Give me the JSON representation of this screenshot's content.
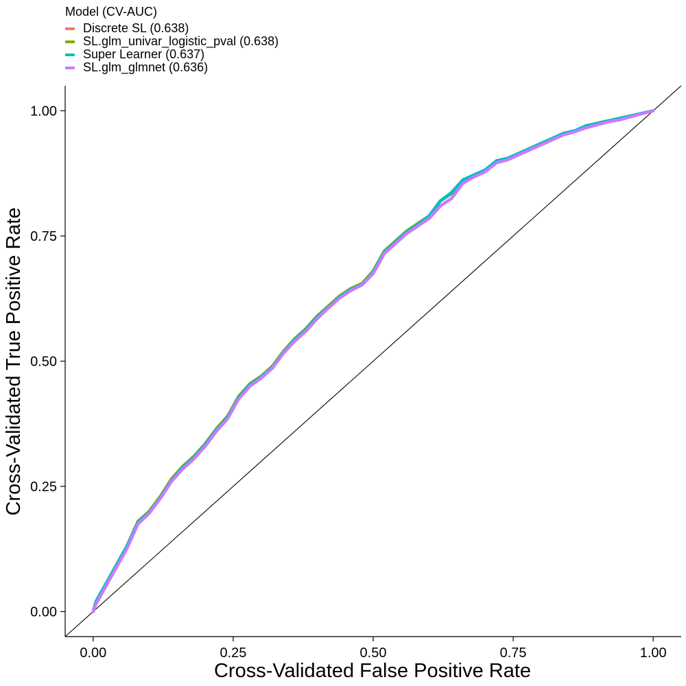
{
  "chart_data": {
    "type": "line",
    "xlabel": "Cross-Validated False Positive Rate",
    "ylabel": "Cross-Validated True Positive Rate",
    "xlim": [
      -0.05,
      1.05
    ],
    "ylim": [
      -0.05,
      1.05
    ],
    "x_ticks": [
      "0.00",
      "0.25",
      "0.50",
      "0.75",
      "1.00"
    ],
    "y_ticks": [
      "0.00",
      "0.25",
      "0.50",
      "0.75",
      "1.00"
    ],
    "legend": {
      "title": "Model (CV-AUC)",
      "placement": "top-left"
    },
    "reference_line": {
      "from": [
        -0.05,
        -0.05
      ],
      "to": [
        1.05,
        1.05
      ]
    },
    "series": [
      {
        "name": "Discrete SL (0.638)",
        "color": "#F8766D",
        "points": [
          [
            0,
            0
          ],
          [
            0.005,
            0.02
          ],
          [
            0.02,
            0.05
          ],
          [
            0.04,
            0.09
          ],
          [
            0.06,
            0.13
          ],
          [
            0.08,
            0.18
          ],
          [
            0.1,
            0.2
          ],
          [
            0.12,
            0.23
          ],
          [
            0.14,
            0.265
          ],
          [
            0.16,
            0.29
          ],
          [
            0.18,
            0.31
          ],
          [
            0.2,
            0.335
          ],
          [
            0.22,
            0.365
          ],
          [
            0.24,
            0.39
          ],
          [
            0.26,
            0.43
          ],
          [
            0.28,
            0.455
          ],
          [
            0.3,
            0.47
          ],
          [
            0.32,
            0.49
          ],
          [
            0.34,
            0.52
          ],
          [
            0.36,
            0.545
          ],
          [
            0.38,
            0.565
          ],
          [
            0.4,
            0.59
          ],
          [
            0.42,
            0.61
          ],
          [
            0.44,
            0.63
          ],
          [
            0.46,
            0.645
          ],
          [
            0.48,
            0.655
          ],
          [
            0.5,
            0.68
          ],
          [
            0.52,
            0.72
          ],
          [
            0.54,
            0.74
          ],
          [
            0.56,
            0.76
          ],
          [
            0.58,
            0.775
          ],
          [
            0.6,
            0.79
          ],
          [
            0.62,
            0.82
          ],
          [
            0.64,
            0.835
          ],
          [
            0.66,
            0.86
          ],
          [
            0.68,
            0.87
          ],
          [
            0.7,
            0.88
          ],
          [
            0.72,
            0.9
          ],
          [
            0.74,
            0.905
          ],
          [
            0.76,
            0.915
          ],
          [
            0.78,
            0.925
          ],
          [
            0.8,
            0.935
          ],
          [
            0.82,
            0.945
          ],
          [
            0.84,
            0.955
          ],
          [
            0.86,
            0.96
          ],
          [
            0.88,
            0.97
          ],
          [
            0.9,
            0.975
          ],
          [
            0.92,
            0.98
          ],
          [
            0.94,
            0.985
          ],
          [
            0.96,
            0.99
          ],
          [
            0.98,
            0.995
          ],
          [
            1,
            1
          ]
        ]
      },
      {
        "name": "SL.glm_univar_logistic_pval (0.638)",
        "color": "#7CAE00",
        "points": [
          [
            0,
            0
          ],
          [
            0.005,
            0.02
          ],
          [
            0.02,
            0.05
          ],
          [
            0.04,
            0.09
          ],
          [
            0.06,
            0.13
          ],
          [
            0.08,
            0.18
          ],
          [
            0.1,
            0.2
          ],
          [
            0.12,
            0.23
          ],
          [
            0.14,
            0.265
          ],
          [
            0.16,
            0.29
          ],
          [
            0.18,
            0.31
          ],
          [
            0.2,
            0.335
          ],
          [
            0.22,
            0.365
          ],
          [
            0.24,
            0.39
          ],
          [
            0.26,
            0.43
          ],
          [
            0.28,
            0.455
          ],
          [
            0.3,
            0.47
          ],
          [
            0.32,
            0.49
          ],
          [
            0.34,
            0.52
          ],
          [
            0.36,
            0.545
          ],
          [
            0.38,
            0.565
          ],
          [
            0.4,
            0.59
          ],
          [
            0.42,
            0.61
          ],
          [
            0.44,
            0.63
          ],
          [
            0.46,
            0.645
          ],
          [
            0.48,
            0.655
          ],
          [
            0.5,
            0.68
          ],
          [
            0.52,
            0.72
          ],
          [
            0.54,
            0.74
          ],
          [
            0.56,
            0.76
          ],
          [
            0.58,
            0.775
          ],
          [
            0.6,
            0.79
          ],
          [
            0.62,
            0.82
          ],
          [
            0.64,
            0.835
          ],
          [
            0.66,
            0.86
          ],
          [
            0.68,
            0.87
          ],
          [
            0.7,
            0.88
          ],
          [
            0.72,
            0.9
          ],
          [
            0.74,
            0.905
          ],
          [
            0.76,
            0.915
          ],
          [
            0.78,
            0.925
          ],
          [
            0.8,
            0.935
          ],
          [
            0.82,
            0.945
          ],
          [
            0.84,
            0.955
          ],
          [
            0.86,
            0.96
          ],
          [
            0.88,
            0.97
          ],
          [
            0.9,
            0.975
          ],
          [
            0.92,
            0.98
          ],
          [
            0.94,
            0.985
          ],
          [
            0.96,
            0.99
          ],
          [
            0.98,
            0.995
          ],
          [
            1,
            1
          ]
        ]
      },
      {
        "name": "Super Learner (0.637)",
        "color": "#00BFC4",
        "points": [
          [
            0,
            0
          ],
          [
            0.005,
            0.02
          ],
          [
            0.02,
            0.05
          ],
          [
            0.04,
            0.09
          ],
          [
            0.06,
            0.13
          ],
          [
            0.08,
            0.178
          ],
          [
            0.1,
            0.198
          ],
          [
            0.12,
            0.228
          ],
          [
            0.14,
            0.262
          ],
          [
            0.16,
            0.288
          ],
          [
            0.18,
            0.308
          ],
          [
            0.2,
            0.333
          ],
          [
            0.22,
            0.363
          ],
          [
            0.24,
            0.388
          ],
          [
            0.26,
            0.428
          ],
          [
            0.28,
            0.453
          ],
          [
            0.3,
            0.468
          ],
          [
            0.32,
            0.488
          ],
          [
            0.34,
            0.518
          ],
          [
            0.36,
            0.543
          ],
          [
            0.38,
            0.563
          ],
          [
            0.4,
            0.588
          ],
          [
            0.42,
            0.608
          ],
          [
            0.44,
            0.628
          ],
          [
            0.46,
            0.643
          ],
          [
            0.48,
            0.653
          ],
          [
            0.5,
            0.678
          ],
          [
            0.52,
            0.718
          ],
          [
            0.54,
            0.738
          ],
          [
            0.56,
            0.758
          ],
          [
            0.58,
            0.773
          ],
          [
            0.6,
            0.79
          ],
          [
            0.62,
            0.82
          ],
          [
            0.64,
            0.837
          ],
          [
            0.66,
            0.862
          ],
          [
            0.68,
            0.872
          ],
          [
            0.7,
            0.882
          ],
          [
            0.72,
            0.9
          ],
          [
            0.74,
            0.905
          ],
          [
            0.76,
            0.915
          ],
          [
            0.78,
            0.925
          ],
          [
            0.8,
            0.935
          ],
          [
            0.82,
            0.945
          ],
          [
            0.84,
            0.955
          ],
          [
            0.86,
            0.96
          ],
          [
            0.88,
            0.97
          ],
          [
            0.9,
            0.975
          ],
          [
            0.92,
            0.98
          ],
          [
            0.94,
            0.985
          ],
          [
            0.96,
            0.99
          ],
          [
            0.98,
            0.995
          ],
          [
            1,
            1
          ]
        ]
      },
      {
        "name": "SL.glm_glmnet (0.636)",
        "color": "#C77CFF",
        "points": [
          [
            0,
            0
          ],
          [
            0.005,
            0.015
          ],
          [
            0.02,
            0.045
          ],
          [
            0.04,
            0.085
          ],
          [
            0.06,
            0.125
          ],
          [
            0.08,
            0.175
          ],
          [
            0.1,
            0.196
          ],
          [
            0.12,
            0.226
          ],
          [
            0.14,
            0.26
          ],
          [
            0.16,
            0.285
          ],
          [
            0.18,
            0.305
          ],
          [
            0.2,
            0.33
          ],
          [
            0.22,
            0.36
          ],
          [
            0.24,
            0.385
          ],
          [
            0.26,
            0.425
          ],
          [
            0.28,
            0.45
          ],
          [
            0.3,
            0.466
          ],
          [
            0.32,
            0.486
          ],
          [
            0.34,
            0.516
          ],
          [
            0.36,
            0.54
          ],
          [
            0.38,
            0.56
          ],
          [
            0.4,
            0.585
          ],
          [
            0.42,
            0.606
          ],
          [
            0.44,
            0.626
          ],
          [
            0.46,
            0.641
          ],
          [
            0.48,
            0.652
          ],
          [
            0.5,
            0.675
          ],
          [
            0.52,
            0.715
          ],
          [
            0.54,
            0.735
          ],
          [
            0.56,
            0.755
          ],
          [
            0.58,
            0.77
          ],
          [
            0.6,
            0.785
          ],
          [
            0.62,
            0.81
          ],
          [
            0.64,
            0.825
          ],
          [
            0.66,
            0.855
          ],
          [
            0.68,
            0.868
          ],
          [
            0.7,
            0.878
          ],
          [
            0.72,
            0.896
          ],
          [
            0.74,
            0.902
          ],
          [
            0.76,
            0.912
          ],
          [
            0.78,
            0.922
          ],
          [
            0.8,
            0.932
          ],
          [
            0.82,
            0.942
          ],
          [
            0.84,
            0.952
          ],
          [
            0.86,
            0.958
          ],
          [
            0.88,
            0.966
          ],
          [
            0.9,
            0.972
          ],
          [
            0.92,
            0.978
          ],
          [
            0.94,
            0.982
          ],
          [
            0.96,
            0.988
          ],
          [
            0.98,
            0.994
          ],
          [
            1,
            1
          ]
        ]
      }
    ]
  }
}
